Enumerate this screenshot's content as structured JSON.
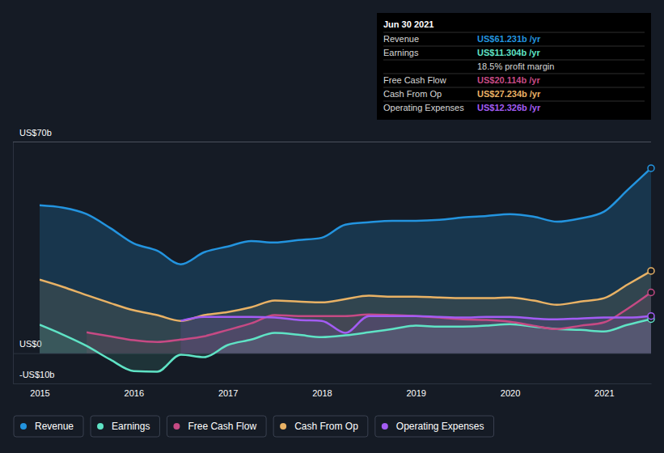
{
  "chart_data": {
    "type": "area",
    "x": [
      2015,
      2015.25,
      2015.5,
      2015.75,
      2016,
      2016.25,
      2016.5,
      2016.75,
      2017,
      2017.25,
      2017.5,
      2017.75,
      2018,
      2018.25,
      2018.5,
      2018.75,
      2019,
      2019.25,
      2019.5,
      2019.75,
      2020,
      2020.25,
      2020.5,
      2020.75,
      2021,
      2021.25,
      2021.5
    ],
    "xlim": [
      2015,
      2021.5
    ],
    "xticks": [
      2015,
      2016,
      2017,
      2018,
      2019,
      2020,
      2021
    ],
    "ylim": [
      -10,
      70
    ],
    "yticks": [
      {
        "value": 70,
        "label": "US$70b"
      },
      {
        "value": 0,
        "label": "US$0"
      },
      {
        "value": -10,
        "label": "-US$10b"
      }
    ],
    "grid": true,
    "legend": "bottom",
    "series": [
      {
        "name": "Revenue",
        "color": "#2394df",
        "values": [
          48.9,
          48.1,
          46.0,
          41.4,
          36.3,
          33.9,
          29.4,
          33.4,
          35.3,
          37.1,
          36.6,
          37.4,
          38.2,
          42.5,
          43.3,
          43.8,
          43.8,
          44.1,
          44.9,
          45.4,
          46.0,
          45.2,
          43.5,
          44.6,
          46.8,
          54.0,
          61.2
        ]
      },
      {
        "name": "Earnings",
        "color": "#5fe3c5",
        "values": [
          9.4,
          6.1,
          2.4,
          -2.1,
          -5.9,
          -6.1,
          -0.5,
          -1.3,
          2.7,
          4.5,
          6.7,
          6.1,
          5.3,
          5.9,
          6.9,
          8.0,
          9.1,
          8.8,
          8.8,
          9.1,
          9.6,
          8.8,
          8.0,
          7.7,
          7.2,
          9.4,
          11.3
        ]
      },
      {
        "name": "Free Cash Flow",
        "color": "#c64a84",
        "values": [
          null,
          null,
          6.9,
          5.6,
          4.3,
          3.7,
          4.5,
          5.6,
          7.7,
          9.9,
          12.6,
          12.3,
          12.3,
          12.3,
          12.8,
          12.6,
          12.3,
          11.8,
          11.2,
          11.0,
          10.4,
          9.1,
          8.0,
          9.1,
          10.2,
          14.7,
          20.1
        ]
      },
      {
        "name": "Cash From Op",
        "color": "#e9b265",
        "values": [
          24.3,
          21.9,
          19.2,
          16.6,
          14.2,
          12.6,
          10.7,
          12.6,
          13.6,
          15.2,
          17.4,
          17.1,
          16.8,
          17.9,
          19.0,
          18.7,
          18.7,
          18.4,
          18.2,
          18.2,
          18.4,
          17.4,
          16.0,
          17.1,
          18.2,
          22.7,
          27.2
        ]
      },
      {
        "name": "Operating Expenses",
        "color": "#a35cf4",
        "values": [
          null,
          null,
          null,
          null,
          null,
          null,
          10.7,
          12.0,
          12.0,
          12.0,
          11.8,
          11.0,
          10.7,
          6.7,
          12.3,
          12.3,
          12.3,
          12.0,
          11.8,
          12.0,
          12.0,
          11.5,
          11.2,
          11.5,
          11.8,
          11.8,
          12.3
        ]
      }
    ],
    "annotations": {
      "title": "Jun 30 2021",
      "rows": [
        {
          "label": "Revenue",
          "value": "US$61.231b /yr",
          "color": "#2394df"
        },
        {
          "label": "Earnings",
          "value": "US$11.304b /yr",
          "color": "#5fe3c5"
        },
        {
          "value": "18.5% profit margin"
        },
        {
          "label": "Free Cash Flow",
          "value": "US$20.114b /yr",
          "color": "#c64a84"
        },
        {
          "label": "Cash From Op",
          "value": "US$27.234b /yr",
          "color": "#e9b265"
        },
        {
          "label": "Operating Expenses",
          "value": "US$12.326b /yr",
          "color": "#a35cf4"
        }
      ]
    }
  }
}
